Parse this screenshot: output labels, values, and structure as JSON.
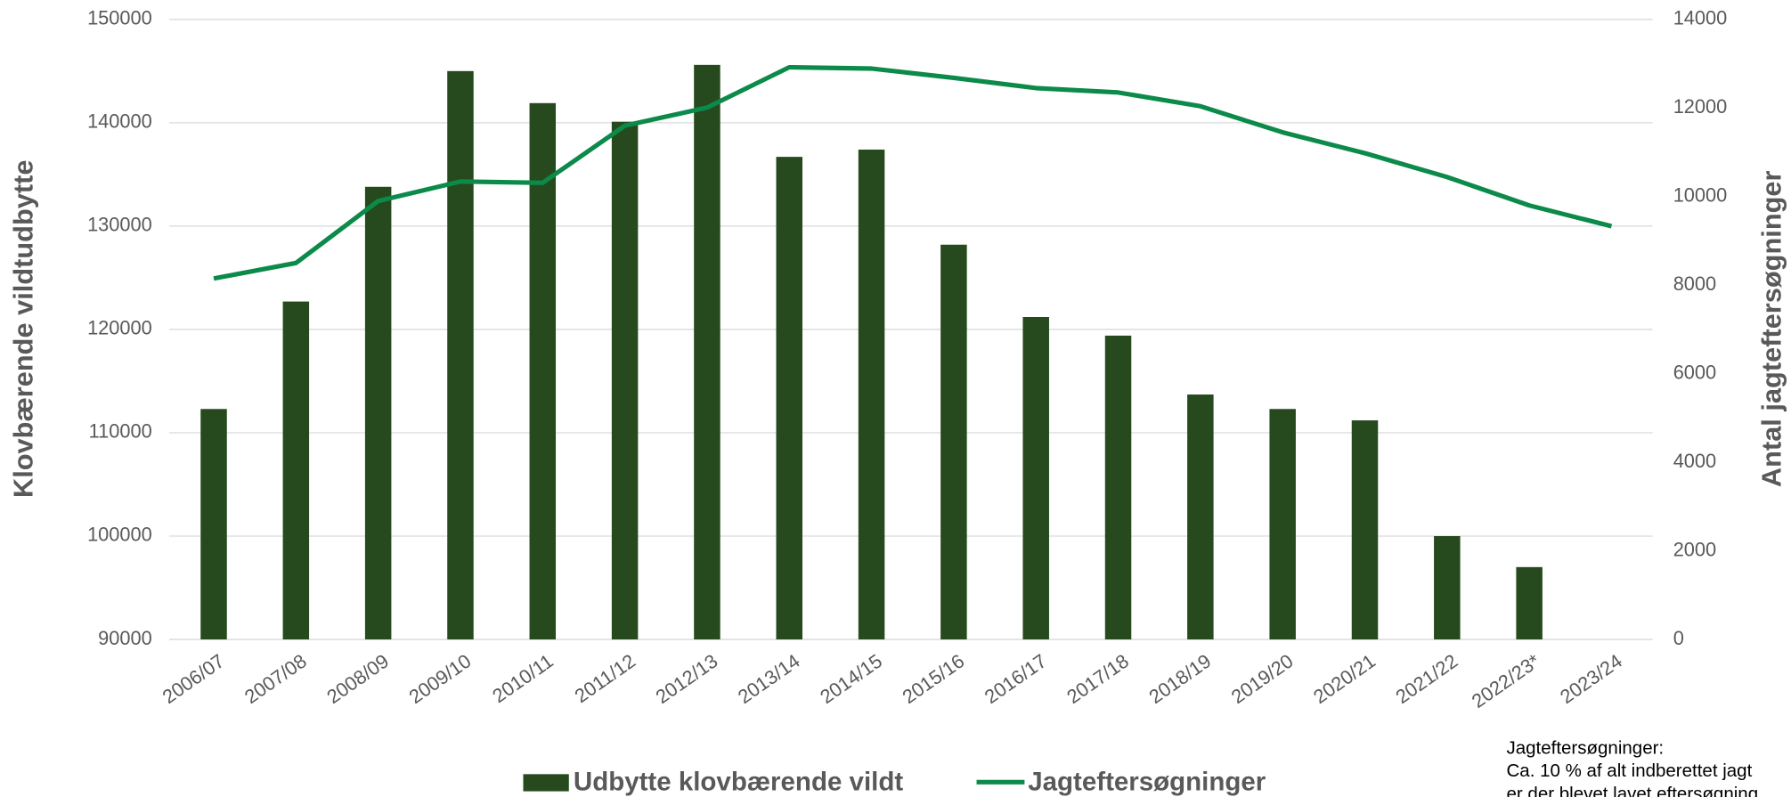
{
  "chart_data": {
    "type": "bar_line",
    "categories": [
      "2006/07",
      "2007/08",
      "2008/09",
      "2009/10",
      "2010/11",
      "2011/12",
      "2012/13",
      "2013/14",
      "2014/15",
      "2015/16",
      "2016/17",
      "2017/18",
      "2018/19",
      "2019/20",
      "2020/21",
      "2021/22",
      "2022/23*",
      "2023/24"
    ],
    "series": [
      {
        "name": "Udbytte klovbærende vildt",
        "type": "bar",
        "color": "#264a1d",
        "axis": "y",
        "values": [
          112300,
          122700,
          133800,
          145000,
          141900,
          140100,
          145600,
          136700,
          137400,
          128200,
          121200,
          119400,
          113700,
          112300,
          111200,
          100000,
          97000,
          null
        ]
      },
      {
        "name": "Jagteftersøgninger",
        "type": "line",
        "color": "#0b8a4a",
        "axis": "y2",
        "values": [
          8150,
          8500,
          9900,
          10340,
          10310,
          11600,
          12010,
          12920,
          12890,
          12680,
          12450,
          12350,
          12040,
          11450,
          10980,
          10440,
          9800,
          9330
        ]
      }
    ],
    "y_label": "Klovbærende vildtudbytte",
    "y2_label": "Antal jagteftersøgninger",
    "ylim": [
      90000,
      150000
    ],
    "yticks": [
      90000,
      100000,
      110000,
      120000,
      130000,
      140000,
      150000
    ],
    "y2lim": [
      0,
      14000
    ],
    "y2ticks": [
      0,
      2000,
      4000,
      6000,
      8000,
      10000,
      12000,
      14000
    ],
    "grid": true,
    "legend": "bottom",
    "annotation": [
      "Jagteftersøgninger:",
      "Ca. 10 % af alt indberettet jagt",
      "er der blevet lavet eftersøgning"
    ]
  }
}
